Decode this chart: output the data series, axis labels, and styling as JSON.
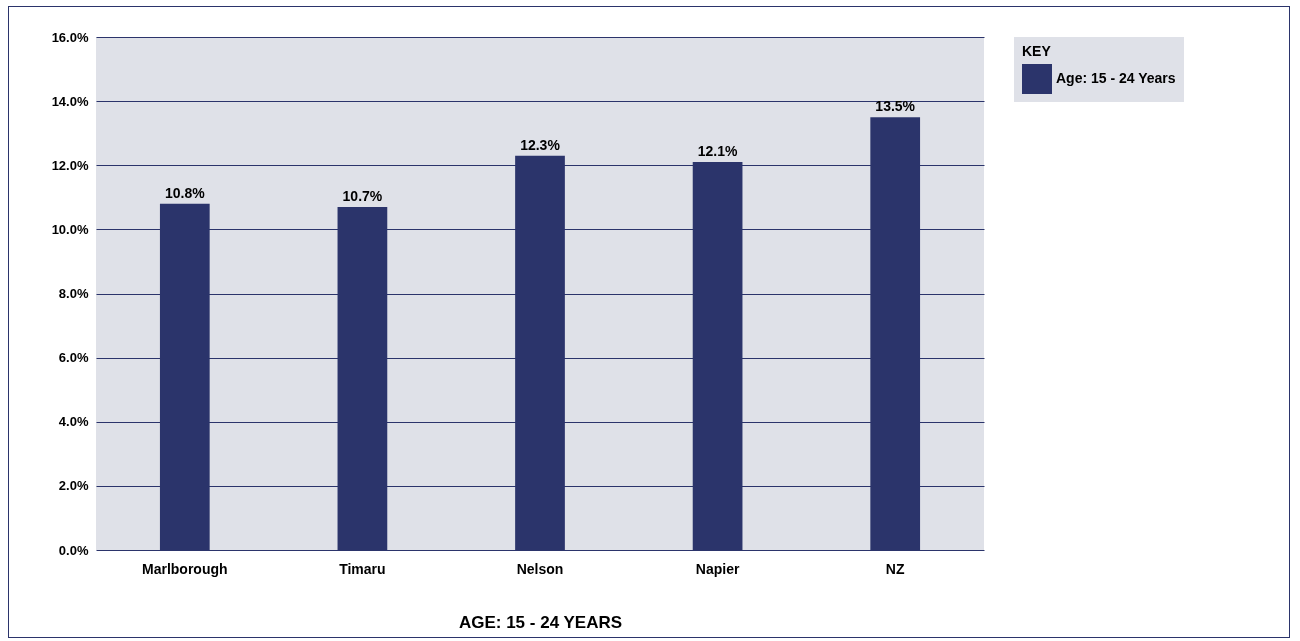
{
  "chart_data": {
    "type": "bar",
    "xlabel": "AGE:  15 - 24 YEARS",
    "legend_title": "KEY",
    "categories": [
      "Marlborough",
      "Timaru",
      "Nelson",
      "Napier",
      "NZ"
    ],
    "series": [
      {
        "name": "Age: 15 - 24 Years",
        "color": "#2b346b",
        "values": [
          10.8,
          10.7,
          12.3,
          12.1,
          13.5
        ],
        "value_labels": [
          "10.8%",
          "10.7%",
          "12.3%",
          "12.1%",
          "13.5%"
        ]
      }
    ],
    "ylim": [
      0,
      16
    ],
    "yticks": [
      {
        "value": 0,
        "label": "0.0%"
      },
      {
        "value": 2,
        "label": "2.0%"
      },
      {
        "value": 4,
        "label": "4.0%"
      },
      {
        "value": 6,
        "label": "6.0%"
      },
      {
        "value": 8,
        "label": "8.0%"
      },
      {
        "value": 10,
        "label": "10.0%"
      },
      {
        "value": 12,
        "label": "12.0%"
      },
      {
        "value": 14,
        "label": "14.0%"
      },
      {
        "value": 16,
        "label": "16.0%"
      }
    ],
    "grid": "y",
    "legend": "top right"
  }
}
